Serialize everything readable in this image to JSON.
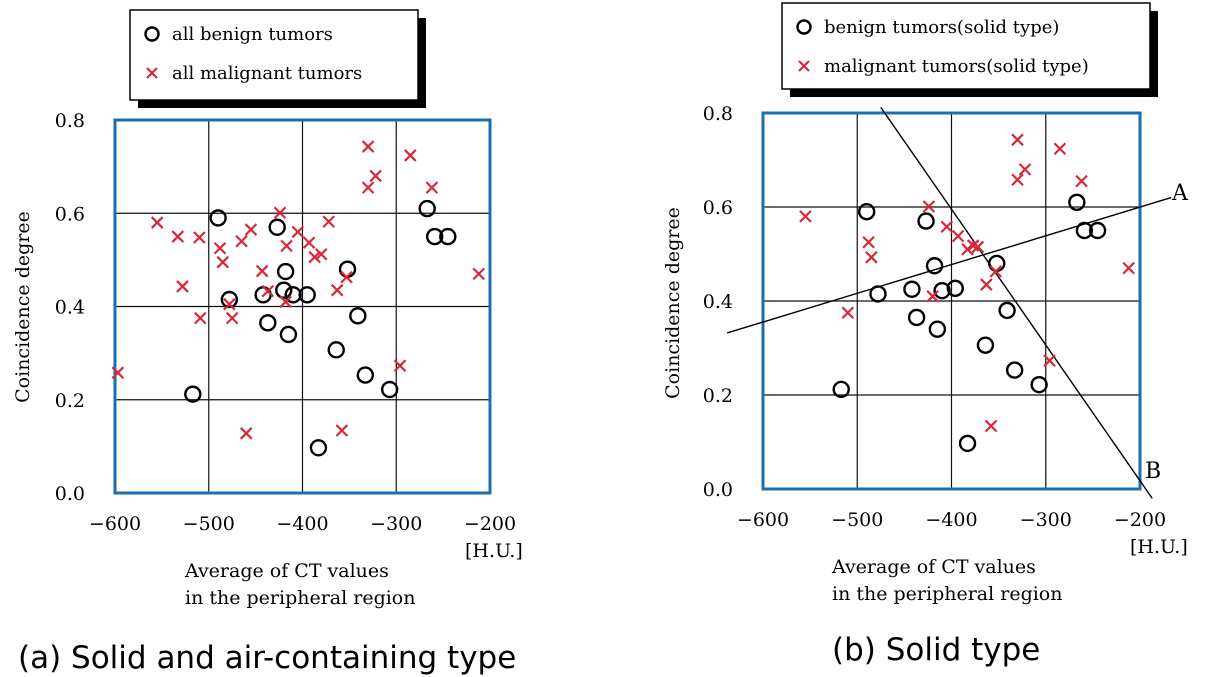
{
  "chart_data": [
    {
      "type": "scatter",
      "caption": "(a) Solid and air-containing type",
      "xlabel_lines": [
        "Average of CT values",
        "in the peripheral region"
      ],
      "xunit": "[H.U.]",
      "ylabel": "Coincidence degree",
      "xlim": [
        -600,
        -200
      ],
      "ylim": [
        0.0,
        0.8
      ],
      "xticks": [
        "−600",
        "−500",
        "−400",
        "−300",
        "−200"
      ],
      "yticks": [
        "0.0",
        "0.2",
        "0.4",
        "0.6",
        "0.8"
      ],
      "grid": true,
      "legend_position": "top",
      "colors": {
        "frame": "#1a6fb0",
        "benign": "#000000",
        "malignant": "#d62839"
      },
      "series": [
        {
          "name": "all benign tumors",
          "marker": "circle",
          "points": [
            [
              -490,
              0.59
            ],
            [
              -427,
              0.57
            ],
            [
              -418,
              0.475
            ],
            [
              -420,
              0.435
            ],
            [
              -410,
              0.425
            ],
            [
              -395,
              0.425
            ],
            [
              -442,
              0.425
            ],
            [
              -478,
              0.415
            ],
            [
              -437,
              0.365
            ],
            [
              -415,
              0.34
            ],
            [
              -352,
              0.48
            ],
            [
              -341,
              0.38
            ],
            [
              -364,
              0.307
            ],
            [
              -333,
              0.253
            ],
            [
              -307,
              0.222
            ],
            [
              -517,
              0.212
            ],
            [
              -383,
              0.097
            ],
            [
              -267,
              0.61
            ],
            [
              -259,
              0.55
            ],
            [
              -245,
              0.55
            ]
          ]
        },
        {
          "name": "all malignant tumors",
          "marker": "x",
          "points": [
            [
              -555,
              0.58
            ],
            [
              -533,
              0.55
            ],
            [
              -510,
              0.548
            ],
            [
              -528,
              0.443
            ],
            [
              -509,
              0.375
            ],
            [
              -488,
              0.525
            ],
            [
              -485,
              0.495
            ],
            [
              -478,
              0.405
            ],
            [
              -475,
              0.375
            ],
            [
              -465,
              0.54
            ],
            [
              -455,
              0.565
            ],
            [
              -443,
              0.476
            ],
            [
              -437,
              0.433
            ],
            [
              -424,
              0.601
            ],
            [
              -417,
              0.53
            ],
            [
              -418,
              0.41
            ],
            [
              -405,
              0.56
            ],
            [
              -393,
              0.537
            ],
            [
              -387,
              0.506
            ],
            [
              -380,
              0.512
            ],
            [
              -372,
              0.582
            ],
            [
              -363,
              0.435
            ],
            [
              -353,
              0.463
            ],
            [
              -330,
              0.743
            ],
            [
              -330,
              0.655
            ],
            [
              -322,
              0.68
            ],
            [
              -285,
              0.724
            ],
            [
              -262,
              0.655
            ],
            [
              -212,
              0.47
            ],
            [
              -296,
              0.273
            ],
            [
              -597,
              0.258
            ],
            [
              -460,
              0.128
            ],
            [
              -358,
              0.134
            ]
          ]
        }
      ]
    },
    {
      "type": "scatter",
      "caption": "(b) Solid type",
      "xlabel_lines": [
        "Average of CT values",
        "in the peripheral region"
      ],
      "xunit": "[H.U.]",
      "ylabel": "Coincidence degree",
      "xlim": [
        -600,
        -200
      ],
      "ylim": [
        0.0,
        0.8
      ],
      "xticks": [
        "−600",
        "−500",
        "−400",
        "−300",
        "−200"
      ],
      "yticks": [
        "0.0",
        "0.2",
        "0.4",
        "0.6",
        "0.8"
      ],
      "grid": true,
      "legend_position": "top",
      "colors": {
        "frame": "#1a6fb0",
        "benign": "#000000",
        "malignant": "#d62839"
      },
      "series": [
        {
          "name": "benign tumors(solid type)",
          "marker": "circle",
          "points": [
            [
              -490,
              0.59
            ],
            [
              -427,
              0.57
            ],
            [
              -418,
              0.475
            ],
            [
              -442,
              0.425
            ],
            [
              -410,
              0.422
            ],
            [
              -396,
              0.427
            ],
            [
              -478,
              0.415
            ],
            [
              -437,
              0.365
            ],
            [
              -415,
              0.34
            ],
            [
              -352,
              0.48
            ],
            [
              -341,
              0.38
            ],
            [
              -364,
              0.306
            ],
            [
              -333,
              0.253
            ],
            [
              -307,
              0.222
            ],
            [
              -517,
              0.212
            ],
            [
              -383,
              0.097
            ],
            [
              -267,
              0.61
            ],
            [
              -259,
              0.55
            ],
            [
              -245,
              0.55
            ]
          ]
        },
        {
          "name": "malignant tumors(solid type)",
          "marker": "x",
          "points": [
            [
              -555,
              0.58
            ],
            [
              -510,
              0.375
            ],
            [
              -488,
              0.525
            ],
            [
              -485,
              0.493
            ],
            [
              -424,
              0.601
            ],
            [
              -420,
              0.41
            ],
            [
              -405,
              0.558
            ],
            [
              -393,
              0.538
            ],
            [
              -383,
              0.51
            ],
            [
              -377,
              0.518
            ],
            [
              -372,
              0.515
            ],
            [
              -363,
              0.435
            ],
            [
              -353,
              0.463
            ],
            [
              -330,
              0.743
            ],
            [
              -330,
              0.658
            ],
            [
              -322,
              0.68
            ],
            [
              -285,
              0.724
            ],
            [
              -262,
              0.655
            ],
            [
              -212,
              0.47
            ],
            [
              -296,
              0.273
            ],
            [
              -358,
              0.134
            ]
          ]
        }
      ],
      "lines": [
        {
          "label": "A",
          "from": [
            -638,
            0.332
          ],
          "to": [
            -167,
            0.62
          ]
        },
        {
          "label": "B",
          "from": [
            -475,
            0.812
          ],
          "to": [
            -187,
            -0.02
          ]
        }
      ]
    }
  ]
}
